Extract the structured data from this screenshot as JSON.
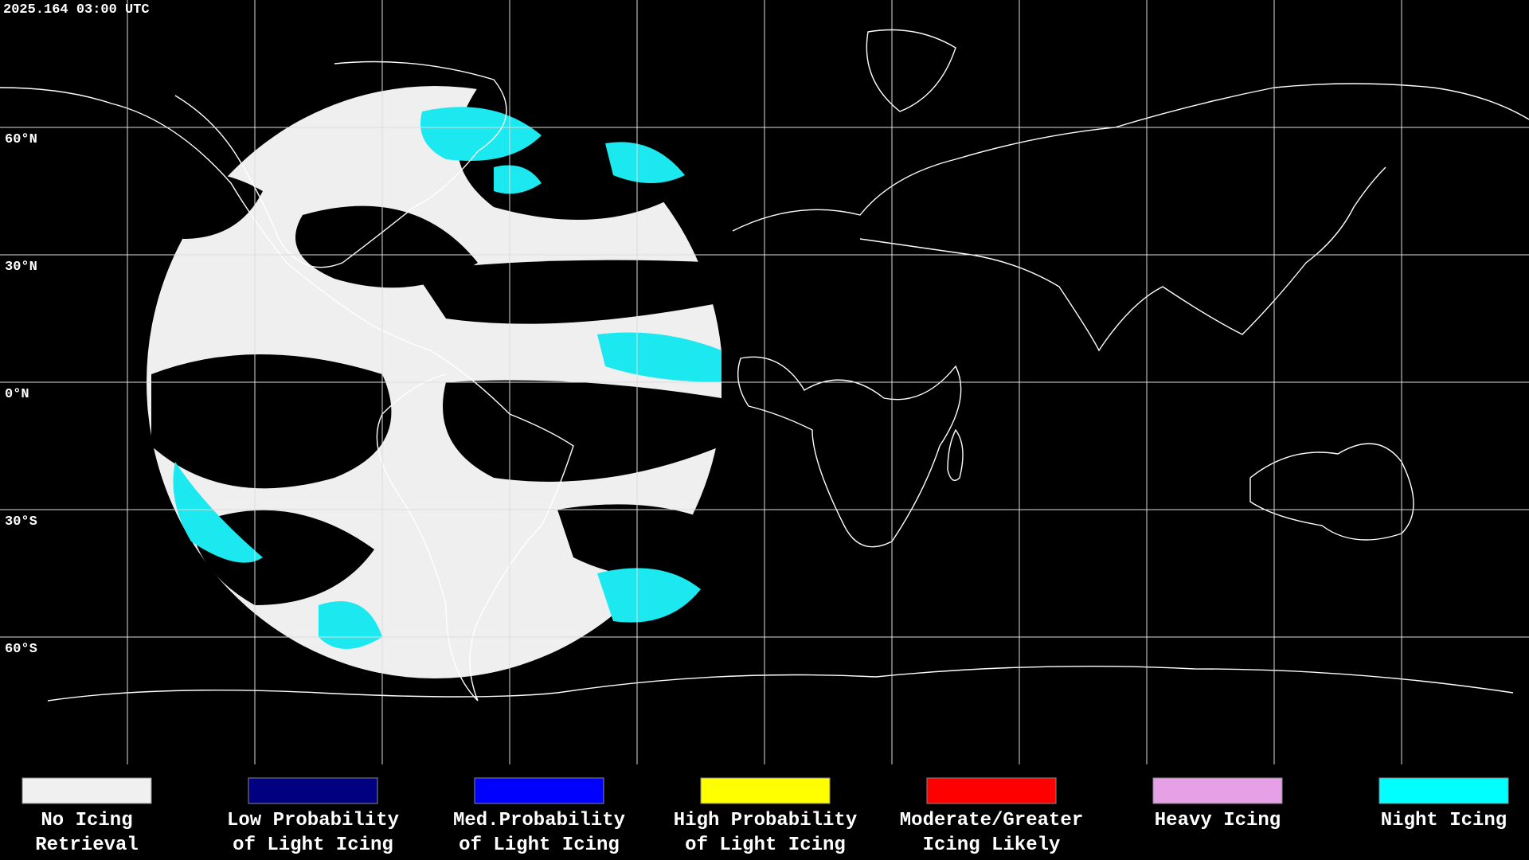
{
  "header": {
    "timestamp": "2025.164 03:00 UTC"
  },
  "map": {
    "lat_labels": [
      "60°N",
      "30°N",
      "0°N",
      "30°S",
      "60°S"
    ]
  },
  "legend": {
    "items": [
      {
        "label": [
          "No Icing",
          "Retrieval"
        ],
        "color": "#f0f0f0"
      },
      {
        "label": [
          "Low Probability",
          "of Light Icing"
        ],
        "color": "#000080"
      },
      {
        "label": [
          "Med.Probability",
          "of Light Icing"
        ],
        "color": "#0000ff"
      },
      {
        "label": [
          "High Probability",
          "of Light Icing"
        ],
        "color": "#ffff00"
      },
      {
        "label": [
          "Moderate/Greater",
          "Icing Likely"
        ],
        "color": "#ff0000"
      },
      {
        "label": [
          "Heavy Icing"
        ],
        "color": "#e6a0e6"
      },
      {
        "label": [
          "Night Icing"
        ],
        "color": "#00ffff"
      }
    ]
  }
}
